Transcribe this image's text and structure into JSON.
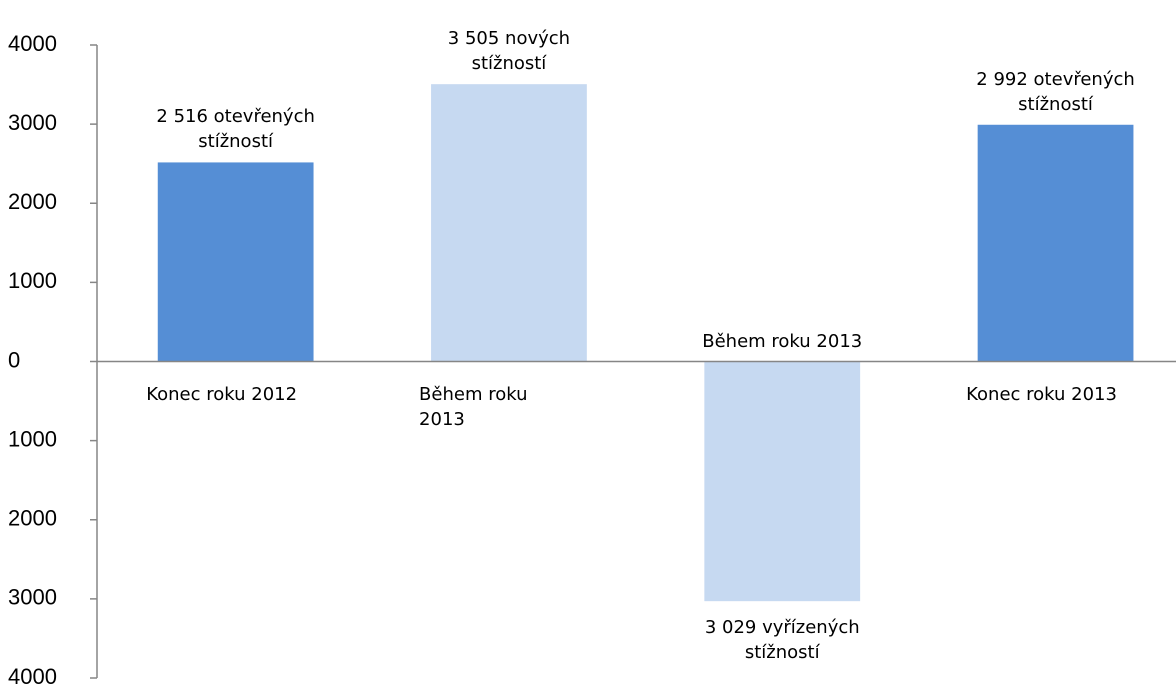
{
  "chart_data": {
    "type": "bar",
    "categories": [
      "Konec roku 2012",
      "Během roku 2013",
      "Během roku 2013",
      "Konec roku 2013"
    ],
    "values": [
      2516,
      3505,
      -3029,
      2992
    ],
    "value_labels": [
      "2 516 otevřených stížností",
      "3 505 nových stížností",
      "3 029 vyřízených stížností",
      "2 992 otevřených stížností"
    ],
    "colors": [
      "#558ed5",
      "#c6d9f1",
      "#c6d9f1",
      "#558ed5"
    ],
    "ylim": [
      -4000,
      4000
    ],
    "yticks": [
      {
        "value": -4000,
        "label": "4000"
      },
      {
        "value": -3000,
        "label": "3000"
      },
      {
        "value": -2000,
        "label": "2000"
      },
      {
        "value": -1000,
        "label": "1000"
      },
      0,
      1000,
      2000,
      3000,
      4000
    ],
    "grid": false
  }
}
